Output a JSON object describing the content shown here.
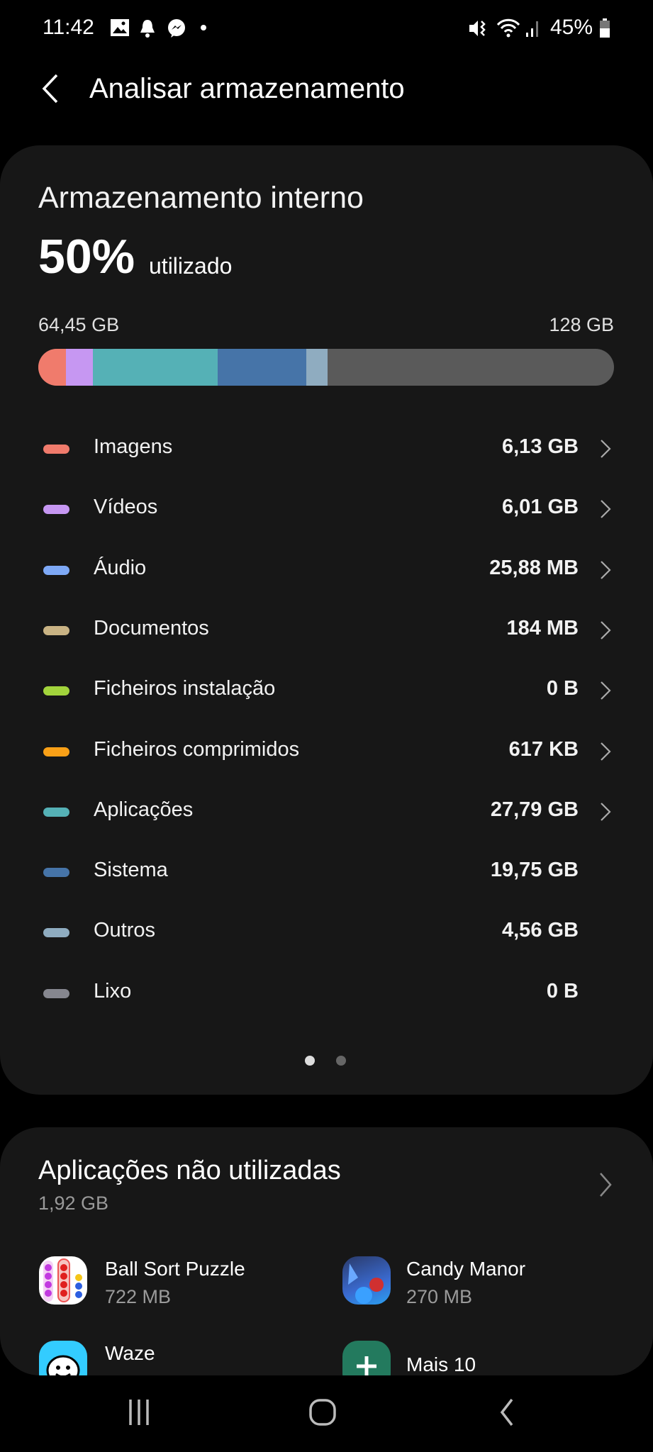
{
  "status_bar": {
    "time": "11:42",
    "battery": "45%",
    "icons": [
      "gallery-icon",
      "bell-icon",
      "messenger-icon",
      "dot-icon",
      "mute-vibrate-icon",
      "wifi-icon",
      "signal-icon",
      "battery-icon"
    ]
  },
  "header": {
    "title": "Analisar armazenamento",
    "back_icon": "chevron-left-icon"
  },
  "storage": {
    "title": "Armazenamento interno",
    "percent": "50%",
    "percent_label": "utilizado",
    "used": "64,45 GB",
    "total": "128 GB",
    "bar_segments": [
      {
        "name": "Imagens",
        "color": "#f07b6c",
        "fraction": 0.048
      },
      {
        "name": "Vídeos",
        "color": "#c697f2",
        "fraction": 0.047
      },
      {
        "name": "Aplicações",
        "color": "#55b1b6",
        "fraction": 0.217
      },
      {
        "name": "Sistema",
        "color": "#4674a8",
        "fraction": 0.154
      },
      {
        "name": "Outros",
        "color": "#8facc0",
        "fraction": 0.036
      }
    ],
    "categories": [
      {
        "label": "Imagens",
        "value": "6,13 GB",
        "color": "#f07b6c",
        "chevron": true
      },
      {
        "label": "Vídeos",
        "value": "6,01 GB",
        "color": "#c697f2",
        "chevron": true
      },
      {
        "label": "Áudio",
        "value": "25,88 MB",
        "color": "#7ea9f6",
        "chevron": true
      },
      {
        "label": "Documentos",
        "value": "184 MB",
        "color": "#c9b384",
        "chevron": true
      },
      {
        "label": "Ficheiros instalação",
        "value": "0 B",
        "color": "#a2d43c",
        "chevron": true
      },
      {
        "label": "Ficheiros comprimidos",
        "value": "617 KB",
        "color": "#f9a017",
        "chevron": true
      },
      {
        "label": "Aplicações",
        "value": "27,79 GB",
        "color": "#55b1b6",
        "chevron": true
      },
      {
        "label": "Sistema",
        "value": "19,75 GB",
        "color": "#4674a8",
        "chevron": false
      },
      {
        "label": "Outros",
        "value": "4,56 GB",
        "color": "#8facc0",
        "chevron": false
      },
      {
        "label": "Lixo",
        "value": "0 B",
        "color": "#86878f",
        "chevron": false
      }
    ],
    "page_indicator": {
      "pages": 2,
      "current": 1
    }
  },
  "unused_apps": {
    "title": "Aplicações não utilizadas",
    "size": "1,92 GB",
    "apps": [
      {
        "name": "Ball Sort Puzzle",
        "size": "722 MB"
      },
      {
        "name": "Candy Manor",
        "size": "270 MB"
      },
      {
        "name": "Waze",
        "size": ""
      },
      {
        "name": "Mais 10",
        "size": ""
      }
    ]
  },
  "nav_bar": {
    "icons": [
      "recents-icon",
      "home-icon",
      "back-icon"
    ]
  }
}
